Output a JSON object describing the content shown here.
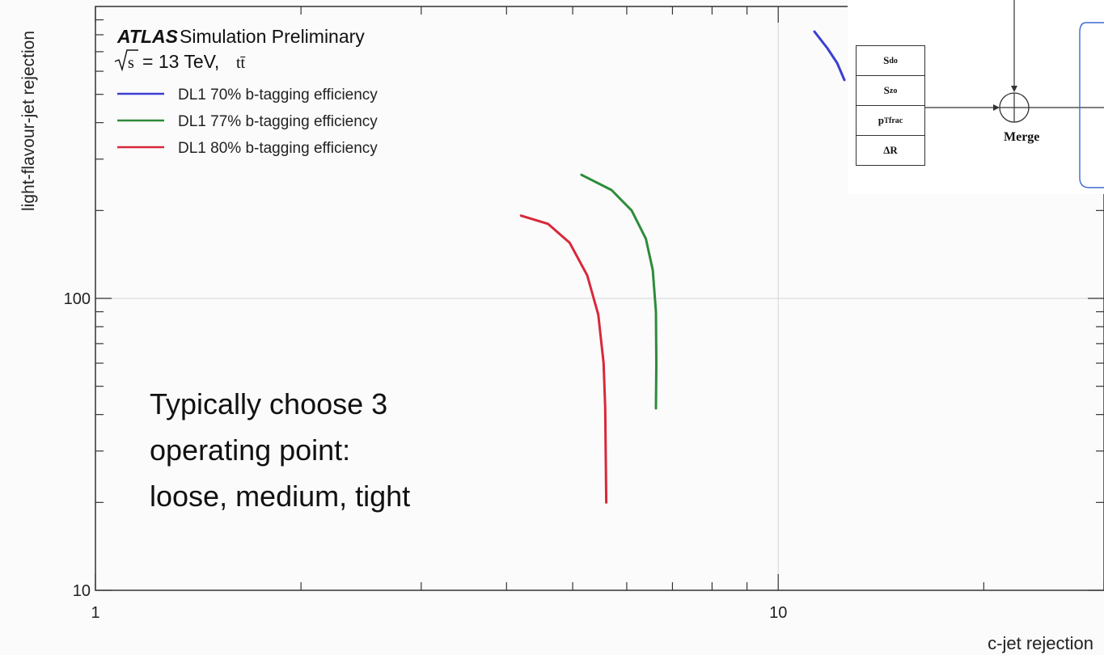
{
  "chart_data": {
    "type": "line",
    "xscale": "log",
    "yscale": "log",
    "xlim": [
      1,
      30
    ],
    "ylim": [
      10,
      1000
    ],
    "xlabel": "c-jet rejection",
    "ylabel": "light-flavour-jet rejection",
    "x_ticks": [
      "1",
      "10"
    ],
    "y_ticks": [
      "10",
      "100"
    ],
    "header": {
      "atlas": "ATLAS",
      "label": "Simulation Preliminary",
      "energy": "= 13 TeV,",
      "process": "tt̄"
    },
    "legend_position": "top-left",
    "series": [
      {
        "name": "DL1  70% b-tagging efficiency",
        "color": "#3a3fd0",
        "points": [
          [
            11.3,
            820
          ],
          [
            11.8,
            720
          ],
          [
            12.2,
            640
          ],
          [
            12.5,
            560
          ]
        ]
      },
      {
        "name": "DL1  77% b-tagging efficiency",
        "color": "#2e8b3a",
        "points": [
          [
            5.15,
            265
          ],
          [
            5.7,
            235
          ],
          [
            6.1,
            200
          ],
          [
            6.4,
            160
          ],
          [
            6.55,
            125
          ],
          [
            6.62,
            90
          ],
          [
            6.63,
            60
          ],
          [
            6.62,
            42
          ]
        ]
      },
      {
        "name": "DL1  80% b-tagging efficiency",
        "color": "#d8283a",
        "points": [
          [
            4.2,
            192
          ],
          [
            4.6,
            180
          ],
          [
            4.95,
            155
          ],
          [
            5.25,
            120
          ],
          [
            5.45,
            88
          ],
          [
            5.55,
            60
          ],
          [
            5.58,
            42
          ],
          [
            5.59,
            28
          ],
          [
            5.6,
            20
          ]
        ]
      }
    ],
    "annotation": [
      "Typically choose 3",
      "operating point:",
      "loose, medium, tight"
    ]
  },
  "diagram": {
    "features": [
      "S_do",
      "S_zo",
      "pT^frac",
      "ΔR"
    ],
    "merge_label": "Merge"
  }
}
